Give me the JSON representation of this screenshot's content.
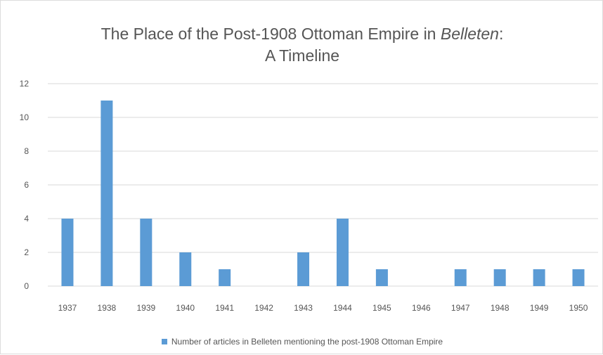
{
  "chart_data": {
    "type": "bar",
    "title": {
      "line1_prefix": "The Place of the Post-1908 Ottoman Empire in ",
      "line1_italic": "Belleten",
      "line1_suffix": ":",
      "line2": "A Timeline"
    },
    "categories": [
      "1937",
      "1938",
      "1939",
      "1940",
      "1941",
      "1942",
      "1943",
      "1944",
      "1945",
      "1946",
      "1947",
      "1948",
      "1949",
      "1950"
    ],
    "series": [
      {
        "name": "Number of articles in Belleten mentioning the post-1908 Ottoman Empire",
        "values": [
          4,
          11,
          4,
          2,
          1,
          0,
          2,
          4,
          1,
          0,
          1,
          1,
          1,
          1
        ],
        "color": "#5b9bd5"
      }
    ],
    "ylim": [
      0,
      12
    ],
    "yticks": [
      0,
      2,
      4,
      6,
      8,
      10,
      12
    ],
    "grid": true,
    "grid_color": "#d9d9d9",
    "legend_position": "bottom"
  }
}
